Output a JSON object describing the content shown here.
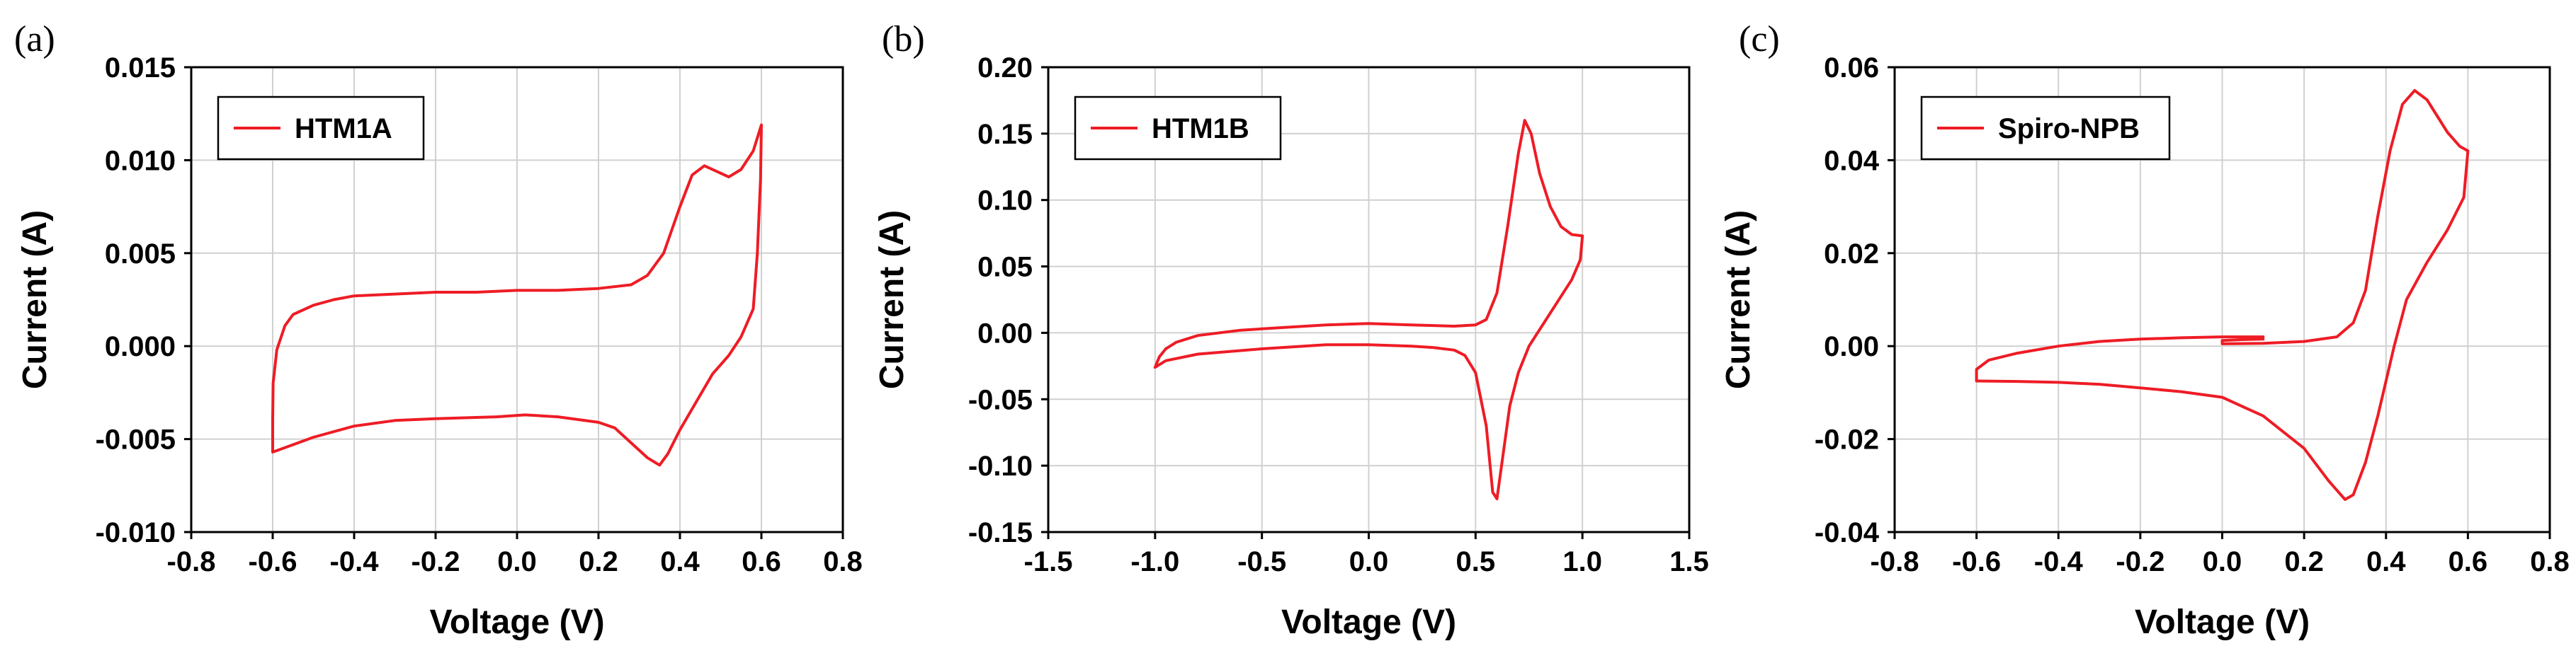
{
  "colors": {
    "series": "#ee1c25",
    "grid": "#d0d0d0",
    "axis": "#000000"
  },
  "chart_data": [
    {
      "type": "line",
      "panel_label": "(a)",
      "xlabel": "Voltage (V)",
      "ylabel": "Current (A)",
      "xlim": [
        -0.8,
        0.8
      ],
      "ylim": [
        -0.01,
        0.015
      ],
      "grid": true,
      "x_ticks": [
        -0.8,
        -0.6,
        -0.4,
        -0.2,
        0.0,
        0.2,
        0.4,
        0.6,
        0.8
      ],
      "x_tick_labels": [
        "-0.8",
        "-0.6",
        "-0.4",
        "-0.2",
        "0.0",
        "0.2",
        "0.4",
        "0.6",
        "0.8"
      ],
      "y_ticks": [
        -0.01,
        -0.005,
        0.0,
        0.005,
        0.01,
        0.015
      ],
      "y_tick_labels": [
        "-0.010",
        "-0.005",
        "0.000",
        "0.005",
        "0.010",
        "0.015"
      ],
      "legend_position": "top-left",
      "series": [
        {
          "name": "HTM1A",
          "color": "#ee1c25",
          "points": [
            [
              0.0,
              0.003
            ],
            [
              0.1,
              0.003
            ],
            [
              0.2,
              0.0031
            ],
            [
              0.28,
              0.0033
            ],
            [
              0.32,
              0.0038
            ],
            [
              0.36,
              0.005
            ],
            [
              0.4,
              0.0075
            ],
            [
              0.43,
              0.0092
            ],
            [
              0.46,
              0.0097
            ],
            [
              0.49,
              0.0094
            ],
            [
              0.52,
              0.0091
            ],
            [
              0.55,
              0.0095
            ],
            [
              0.58,
              0.0105
            ],
            [
              0.6,
              0.0119
            ],
            [
              0.598,
              0.009
            ],
            [
              0.59,
              0.005
            ],
            [
              0.58,
              0.002
            ],
            [
              0.55,
              0.0005
            ],
            [
              0.52,
              -0.0005
            ],
            [
              0.48,
              -0.0015
            ],
            [
              0.44,
              -0.003
            ],
            [
              0.4,
              -0.0045
            ],
            [
              0.37,
              -0.0058
            ],
            [
              0.35,
              -0.0064
            ],
            [
              0.32,
              -0.006
            ],
            [
              0.28,
              -0.0052
            ],
            [
              0.24,
              -0.0044
            ],
            [
              0.2,
              -0.0041
            ],
            [
              0.1,
              -0.0038
            ],
            [
              0.02,
              -0.0037
            ],
            [
              -0.05,
              -0.0038
            ],
            [
              -0.2,
              -0.0039
            ],
            [
              -0.3,
              -0.004
            ],
            [
              -0.4,
              -0.0043
            ],
            [
              -0.5,
              -0.0049
            ],
            [
              -0.6,
              -0.0057
            ],
            [
              -0.6,
              -0.004
            ],
            [
              -0.599,
              -0.002
            ],
            [
              -0.59,
              -0.0002
            ],
            [
              -0.57,
              0.0011
            ],
            [
              -0.55,
              0.0017
            ],
            [
              -0.5,
              0.0022
            ],
            [
              -0.45,
              0.0025
            ],
            [
              -0.4,
              0.0027
            ],
            [
              -0.3,
              0.0028
            ],
            [
              -0.2,
              0.0029
            ],
            [
              -0.1,
              0.0029
            ],
            [
              0.0,
              0.003
            ]
          ]
        }
      ]
    },
    {
      "type": "line",
      "panel_label": "(b)",
      "xlabel": "Voltage (V)",
      "ylabel": "Current (A)",
      "xlim": [
        -1.5,
        1.5
      ],
      "ylim": [
        -0.15,
        0.2
      ],
      "grid": true,
      "x_ticks": [
        -1.5,
        -1.0,
        -0.5,
        0.0,
        0.5,
        1.0,
        1.5
      ],
      "x_tick_labels": [
        "-1.5",
        "-1.0",
        "-0.5",
        "0.0",
        "0.5",
        "1.0",
        "1.5"
      ],
      "y_ticks": [
        -0.15,
        -0.1,
        -0.05,
        0.0,
        0.05,
        0.1,
        0.15,
        0.2
      ],
      "y_tick_labels": [
        "-0.15",
        "-0.10",
        "-0.05",
        "0.00",
        "0.05",
        "0.10",
        "0.15",
        "0.20"
      ],
      "legend_position": "top-left",
      "series": [
        {
          "name": "HTM1B",
          "color": "#ee1c25",
          "points": [
            [
              0.0,
              0.007
            ],
            [
              0.2,
              0.006
            ],
            [
              0.4,
              0.005
            ],
            [
              0.5,
              0.006
            ],
            [
              0.55,
              0.01
            ],
            [
              0.6,
              0.03
            ],
            [
              0.65,
              0.08
            ],
            [
              0.7,
              0.135
            ],
            [
              0.73,
              0.16
            ],
            [
              0.76,
              0.15
            ],
            [
              0.8,
              0.12
            ],
            [
              0.85,
              0.095
            ],
            [
              0.9,
              0.08
            ],
            [
              0.95,
              0.074
            ],
            [
              1.0,
              0.073
            ],
            [
              0.99,
              0.055
            ],
            [
              0.95,
              0.04
            ],
            [
              0.85,
              0.015
            ],
            [
              0.75,
              -0.01
            ],
            [
              0.7,
              -0.03
            ],
            [
              0.66,
              -0.055
            ],
            [
              0.63,
              -0.09
            ],
            [
              0.6,
              -0.125
            ],
            [
              0.58,
              -0.12
            ],
            [
              0.55,
              -0.07
            ],
            [
              0.5,
              -0.03
            ],
            [
              0.45,
              -0.017
            ],
            [
              0.4,
              -0.013
            ],
            [
              0.3,
              -0.011
            ],
            [
              0.2,
              -0.01
            ],
            [
              0.0,
              -0.009
            ],
            [
              -0.2,
              -0.009
            ],
            [
              -0.5,
              -0.012
            ],
            [
              -0.8,
              -0.016
            ],
            [
              -0.95,
              -0.021
            ],
            [
              -1.0,
              -0.026
            ],
            [
              -0.98,
              -0.018
            ],
            [
              -0.95,
              -0.012
            ],
            [
              -0.9,
              -0.007
            ],
            [
              -0.8,
              -0.002
            ],
            [
              -0.6,
              0.002
            ],
            [
              -0.4,
              0.004
            ],
            [
              -0.2,
              0.006
            ],
            [
              0.0,
              0.007
            ]
          ]
        }
      ]
    },
    {
      "type": "line",
      "panel_label": "(c)",
      "xlabel": "Voltage (V)",
      "ylabel": "Current (A)",
      "xlim": [
        -0.8,
        0.8
      ],
      "ylim": [
        -0.04,
        0.06
      ],
      "grid": true,
      "x_ticks": [
        -0.8,
        -0.6,
        -0.4,
        -0.2,
        0.0,
        0.2,
        0.4,
        0.6,
        0.8
      ],
      "x_tick_labels": [
        "-0.8",
        "-0.6",
        "-0.4",
        "-0.2",
        "0.0",
        "0.2",
        "0.4",
        "0.6",
        "0.8"
      ],
      "y_ticks": [
        -0.04,
        -0.02,
        0.0,
        0.02,
        0.04,
        0.06
      ],
      "y_tick_labels": [
        "-0.04",
        "-0.02",
        "0.00",
        "0.02",
        "0.04",
        "0.06"
      ],
      "legend_position": "top-left",
      "series": [
        {
          "name": "Spiro-NPB",
          "color": "#ee1c25",
          "points": [
            [
              0.1,
              0.002
            ],
            [
              0.0,
              0.002
            ],
            [
              -0.1,
              0.0018
            ],
            [
              -0.2,
              0.0015
            ],
            [
              -0.3,
              0.001
            ],
            [
              -0.4,
              0.0
            ],
            [
              -0.5,
              -0.0015
            ],
            [
              -0.57,
              -0.003
            ],
            [
              -0.6,
              -0.005
            ],
            [
              -0.6,
              -0.0075
            ],
            [
              -0.5,
              -0.0076
            ],
            [
              -0.4,
              -0.0078
            ],
            [
              -0.3,
              -0.0082
            ],
            [
              -0.2,
              -0.009
            ],
            [
              -0.1,
              -0.0098
            ],
            [
              0.0,
              -0.011
            ],
            [
              0.1,
              -0.015
            ],
            [
              0.2,
              -0.022
            ],
            [
              0.26,
              -0.029
            ],
            [
              0.3,
              -0.033
            ],
            [
              0.32,
              -0.032
            ],
            [
              0.35,
              -0.025
            ],
            [
              0.38,
              -0.015
            ],
            [
              0.42,
              0.0
            ],
            [
              0.45,
              0.01
            ],
            [
              0.5,
              0.018
            ],
            [
              0.55,
              0.025
            ],
            [
              0.59,
              0.032
            ],
            [
              0.6,
              0.042
            ],
            [
              0.58,
              0.043
            ],
            [
              0.55,
              0.046
            ],
            [
              0.5,
              0.053
            ],
            [
              0.47,
              0.055
            ],
            [
              0.44,
              0.052
            ],
            [
              0.41,
              0.042
            ],
            [
              0.38,
              0.028
            ],
            [
              0.35,
              0.012
            ],
            [
              0.32,
              0.005
            ],
            [
              0.28,
              0.002
            ],
            [
              0.2,
              0.001
            ],
            [
              0.1,
              0.0006
            ],
            [
              0.0,
              0.0005
            ],
            [
              0.0,
              0.0012
            ],
            [
              0.05,
              0.0014
            ],
            [
              0.1,
              0.0015
            ]
          ]
        }
      ]
    }
  ]
}
